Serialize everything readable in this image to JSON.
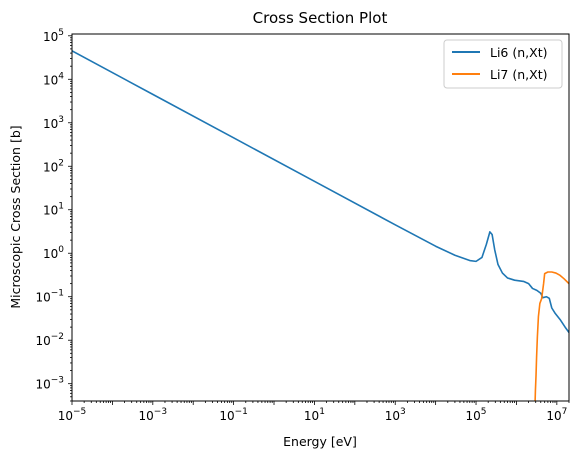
{
  "chart_data": {
    "type": "line",
    "title": "Cross Section Plot",
    "xlabel": "Energy [eV]",
    "ylabel": "Microscopic Cross Section [b]",
    "xscale": "log",
    "yscale": "log",
    "xlim": [
      1e-05,
      20000000
    ],
    "ylim": [
      0.0004,
      110000
    ],
    "grid": false,
    "legend_position": "top-right",
    "x_ticks": [
      {
        "value": 1e-05,
        "base": "10",
        "exp": "−5"
      },
      {
        "value": 0.001,
        "base": "10",
        "exp": "−3"
      },
      {
        "value": 0.1,
        "base": "10",
        "exp": "−1"
      },
      {
        "value": 10.0,
        "base": "10",
        "exp": "1"
      },
      {
        "value": 1000.0,
        "base": "10",
        "exp": "3"
      },
      {
        "value": 100000.0,
        "base": "10",
        "exp": "5"
      },
      {
        "value": 10000000.0,
        "base": "10",
        "exp": "7"
      }
    ],
    "y_ticks": [
      {
        "value": 0.001,
        "base": "10",
        "exp": "−3"
      },
      {
        "value": 0.01,
        "base": "10",
        "exp": "−2"
      },
      {
        "value": 0.1,
        "base": "10",
        "exp": "−1"
      },
      {
        "value": 1.0,
        "base": "10",
        "exp": "0"
      },
      {
        "value": 10.0,
        "base": "10",
        "exp": "1"
      },
      {
        "value": 100.0,
        "base": "10",
        "exp": "2"
      },
      {
        "value": 1000.0,
        "base": "10",
        "exp": "3"
      },
      {
        "value": 10000.0,
        "base": "10",
        "exp": "4"
      },
      {
        "value": 100000.0,
        "base": "10",
        "exp": "5"
      }
    ],
    "series": [
      {
        "name": "Li6 (n,Xt)",
        "color": "#1f77b4",
        "points": [
          [
            1e-05,
            45000
          ],
          [
            0.001,
            4500
          ],
          [
            0.1,
            450
          ],
          [
            10,
            45
          ],
          [
            1000,
            4.5
          ],
          [
            10000,
            1.45
          ],
          [
            30000,
            0.9
          ],
          [
            70000,
            0.68
          ],
          [
            100000,
            0.65
          ],
          [
            140000,
            0.8
          ],
          [
            180000,
            1.6
          ],
          [
            220000,
            3.1
          ],
          [
            250000,
            2.7
          ],
          [
            290000,
            1.2
          ],
          [
            350000,
            0.55
          ],
          [
            450000,
            0.35
          ],
          [
            600000,
            0.27
          ],
          [
            900000,
            0.24
          ],
          [
            1500000,
            0.225
          ],
          [
            2000000,
            0.2
          ],
          [
            2500000,
            0.155
          ],
          [
            3200000,
            0.14
          ],
          [
            4000000,
            0.12
          ],
          [
            4500000,
            0.095
          ],
          [
            5500000,
            0.1
          ],
          [
            6500000,
            0.092
          ],
          [
            7500000,
            0.055
          ],
          [
            9000000,
            0.042
          ],
          [
            12000000,
            0.03
          ],
          [
            16000000,
            0.02
          ],
          [
            20000000,
            0.015
          ]
        ]
      },
      {
        "name": "Li7 (n,Xt)",
        "color": "#ff7f0e",
        "points": [
          [
            2900000,
            0.0004
          ],
          [
            2950000,
            0.0007
          ],
          [
            3050000,
            0.0015
          ],
          [
            3150000,
            0.004
          ],
          [
            3300000,
            0.012
          ],
          [
            3500000,
            0.035
          ],
          [
            3800000,
            0.07
          ],
          [
            4200000,
            0.09
          ],
          [
            4700000,
            0.2
          ],
          [
            5000000,
            0.34
          ],
          [
            6000000,
            0.37
          ],
          [
            7500000,
            0.37
          ],
          [
            9500000,
            0.35
          ],
          [
            12000000,
            0.31
          ],
          [
            15000000,
            0.26
          ],
          [
            20000000,
            0.2
          ]
        ]
      }
    ]
  }
}
